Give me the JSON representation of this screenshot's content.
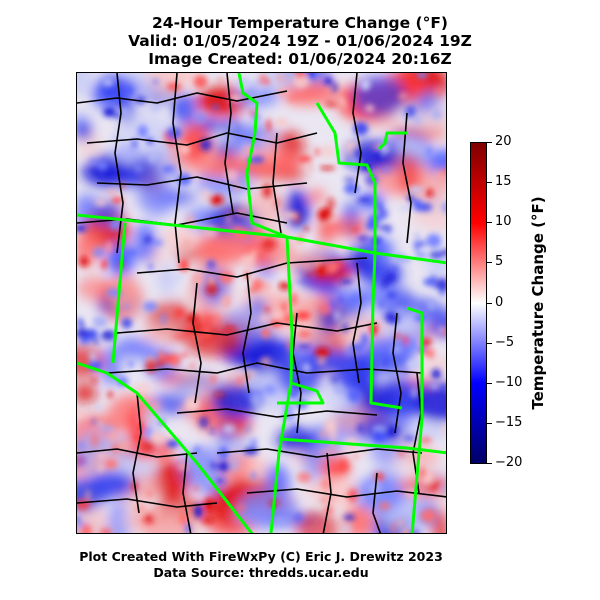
{
  "title": {
    "line1": "24-Hour Temperature Change (°F)",
    "line2": "Valid: 01/05/2024 19Z - 01/06/2024 19Z",
    "line3": "Image Created: 01/06/2024 20:16Z"
  },
  "colorbar": {
    "label": "Temperature Change (°F)",
    "ticks": [
      "20",
      "15",
      "10",
      "5",
      "0",
      "−5",
      "−10",
      "−15",
      "−20"
    ],
    "min": -20,
    "max": 20,
    "colors": {
      "top": "#7f0000",
      "upper": "#ff0000",
      "mid": "#ffffff",
      "lower": "#0000ff",
      "bottom": "#000066"
    }
  },
  "map": {
    "state_border_color": "#00ff00",
    "county_border_color": "#000000"
  },
  "footer": {
    "line1": "Plot Created With FireWxPy (C) Eric J. Drewitz 2023",
    "line2": "Data Source: thredds.ucar.edu"
  }
}
